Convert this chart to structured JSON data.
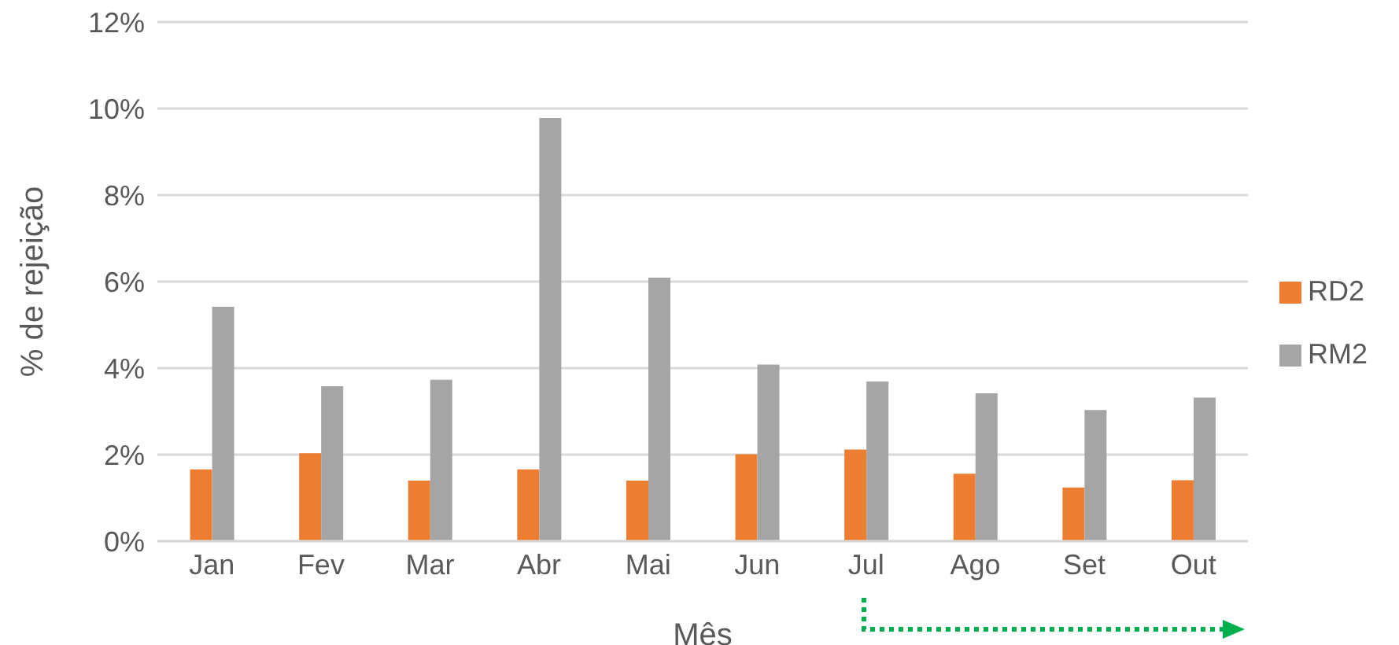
{
  "chart_data": {
    "type": "bar",
    "xlabel": "Mês",
    "ylabel": "% de rejeição",
    "categories": [
      "Jan",
      "Fev",
      "Mar",
      "Abr",
      "Mai",
      "Jun",
      "Jul",
      "Ago",
      "Set",
      "Out"
    ],
    "series": [
      {
        "name": "RD2",
        "color": "#ed7d31",
        "values": [
          1.66,
          2.03,
          1.4,
          1.66,
          1.4,
          2.01,
          2.12,
          1.56,
          1.24,
          1.41
        ]
      },
      {
        "name": "RM2",
        "color": "#a5a5a5",
        "values": [
          5.42,
          3.58,
          3.73,
          9.78,
          6.09,
          4.08,
          3.69,
          3.42,
          3.03,
          3.32
        ]
      }
    ],
    "ylim": [
      0,
      12
    ],
    "yticks": [
      {
        "value": 0,
        "label": "0%"
      },
      {
        "value": 2,
        "label": "2%"
      },
      {
        "value": 4,
        "label": "4%"
      },
      {
        "value": 6,
        "label": "6%"
      },
      {
        "value": 8,
        "label": "8%"
      },
      {
        "value": 10,
        "label": "10%"
      },
      {
        "value": 12,
        "label": "12%"
      }
    ],
    "grid": "y",
    "legend": "right"
  }
}
